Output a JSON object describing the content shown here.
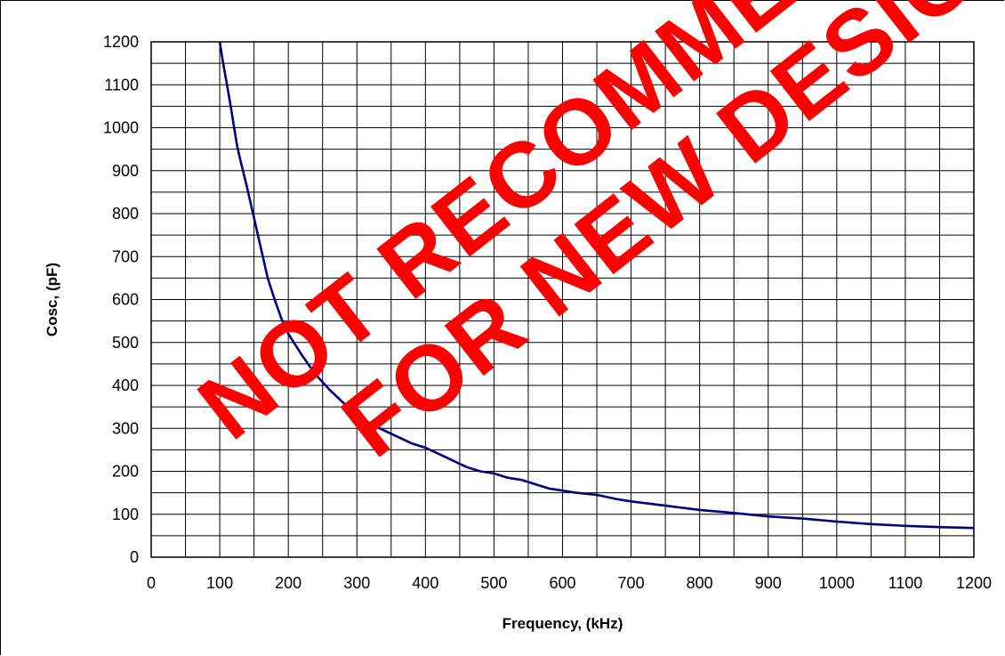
{
  "watermark": {
    "line1": "NOT RECOMMENDED",
    "line2": "FOR NEW DESIGN",
    "color": "#ff0000"
  },
  "chart_data": {
    "type": "line",
    "xlabel": "Frequency, (kHz)",
    "ylabel": "Cosc, (pF)",
    "xlim": [
      0,
      1200
    ],
    "ylim": [
      0,
      1200
    ],
    "x_major_ticks": [
      0,
      100,
      200,
      300,
      400,
      500,
      600,
      700,
      800,
      900,
      1000,
      1100,
      1200
    ],
    "y_major_ticks": [
      0,
      100,
      200,
      300,
      400,
      500,
      600,
      700,
      800,
      900,
      1000,
      1100,
      1200
    ],
    "x_grid_step": 50,
    "y_grid_step": 50,
    "grid": true,
    "line_color": "#000080",
    "series": [
      {
        "x": [
          100,
          105,
          110,
          115,
          120,
          125,
          130,
          140,
          150,
          160,
          170,
          180,
          190,
          200,
          220,
          240,
          260,
          280,
          300,
          320,
          340,
          360,
          380,
          400,
          420,
          440,
          460,
          480,
          500,
          520,
          540,
          560,
          580,
          600,
          620,
          650,
          680,
          700,
          750,
          800,
          850,
          900,
          950,
          1000,
          1050,
          1100,
          1150,
          1200
        ],
        "y": [
          1200,
          1150,
          1105,
          1060,
          1010,
          960,
          925,
          860,
          790,
          720,
          650,
          600,
          555,
          520,
          470,
          425,
          390,
          360,
          335,
          310,
          295,
          280,
          265,
          255,
          240,
          225,
          210,
          200,
          195,
          185,
          180,
          170,
          160,
          155,
          150,
          145,
          135,
          130,
          120,
          110,
          103,
          95,
          90,
          83,
          77,
          73,
          70,
          68
        ]
      }
    ]
  }
}
